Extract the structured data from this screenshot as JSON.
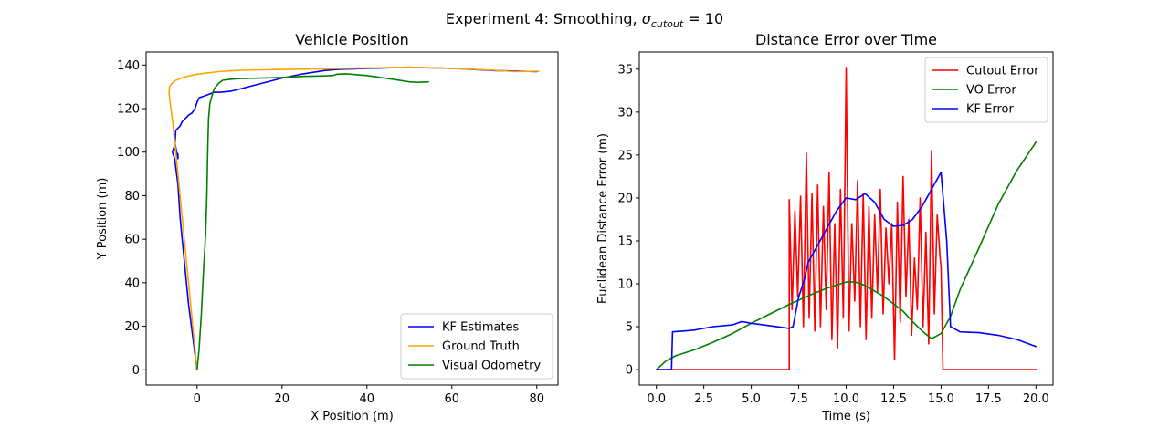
{
  "suptitle": {
    "prefix": "Experiment 4: Smoothing, ",
    "sigma": "σ",
    "subscript": "cutout",
    "suffix": " = 10"
  },
  "chart_data": [
    {
      "type": "line",
      "title": "Vehicle Position",
      "xlabel": "X Position (m)",
      "ylabel": "Y Position (m)",
      "xlim": [
        -12,
        85
      ],
      "ylim": [
        -7,
        146
      ],
      "xticks": [
        0,
        20,
        40,
        60,
        80
      ],
      "yticks": [
        0,
        20,
        40,
        60,
        80,
        100,
        120,
        140
      ],
      "grid": false,
      "legend_position": "lower-right",
      "series": [
        {
          "name": "KF Estimates",
          "color": "#0000ff",
          "x": [
            0,
            -1,
            -2,
            -3,
            -4,
            -4.5,
            -5.3,
            -5.8,
            -5.5,
            -4.5,
            -4.5,
            -5.2,
            -5,
            -4,
            -3.5,
            -3,
            -2,
            -1.2,
            -0.5,
            0,
            0.5,
            2,
            4,
            5.5,
            8,
            10,
            15,
            20,
            25,
            30,
            33,
            40,
            50,
            60,
            70,
            80
          ],
          "y": [
            0,
            15,
            30,
            50,
            70,
            85,
            97,
            100,
            102,
            99,
            97,
            104,
            110,
            112,
            114,
            115,
            117,
            118,
            120,
            123,
            125,
            126,
            127.5,
            127.5,
            128,
            129,
            131.5,
            134,
            136,
            137.5,
            138,
            138.5,
            139,
            138.5,
            137.5,
            137
          ],
          "lw": 1.6
        },
        {
          "name": "Ground Truth",
          "color": "#ffa500",
          "x": [
            0,
            -1,
            -2,
            -3,
            -4,
            -5,
            -5.8,
            -6.3,
            -6.6,
            -6.5,
            -6,
            -5,
            -3,
            0,
            5,
            10,
            20,
            30,
            40,
            50,
            60,
            70,
            75,
            80.5
          ],
          "y": [
            0,
            20,
            40,
            60,
            80,
            100,
            115,
            122,
            127,
            130,
            131.5,
            133,
            134.5,
            135.8,
            137,
            137.6,
            138,
            138.3,
            138.7,
            139,
            138.5,
            137.6,
            137,
            137.2
          ],
          "lw": 1.6
        },
        {
          "name": "Visual Odometry",
          "color": "#008000",
          "x": [
            0,
            0.5,
            1,
            1.5,
            2,
            2.3,
            2.5,
            2.7,
            3,
            3.5,
            4,
            5,
            6,
            8,
            10,
            15,
            20,
            25,
            30,
            32,
            33,
            35,
            40,
            45,
            50,
            52,
            54.5
          ],
          "y": [
            0,
            10,
            25,
            45,
            62,
            80,
            100,
            115,
            122,
            126,
            129,
            131.5,
            133,
            133.5,
            133.8,
            134,
            134.3,
            134.8,
            135,
            135.2,
            135.8,
            136,
            135.2,
            133.8,
            132.3,
            132.1,
            132.3
          ],
          "lw": 1.6
        }
      ]
    },
    {
      "type": "line",
      "title": "Distance Error over Time",
      "xlabel": "Time (s)",
      "ylabel": "Euclidean Distance Error (m)",
      "xlim": [
        -0.9,
        20.9
      ],
      "ylim": [
        -1.8,
        37
      ],
      "xticks": [
        0,
        2.5,
        5,
        7.5,
        10,
        12.5,
        15,
        17.5,
        20
      ],
      "xtick_labels": [
        "0.0",
        "2.5",
        "5.0",
        "7.5",
        "10.0",
        "12.5",
        "15.0",
        "17.5",
        "20.0"
      ],
      "yticks": [
        0,
        5,
        10,
        15,
        20,
        25,
        30,
        35
      ],
      "grid": false,
      "legend_position": "upper-right",
      "series": [
        {
          "name": "Cutout Error",
          "color": "#ff0000",
          "x": [
            0,
            7.0,
            7.0,
            7.15,
            7.3,
            7.45,
            7.6,
            7.75,
            7.9,
            8.05,
            8.2,
            8.35,
            8.5,
            8.65,
            8.8,
            8.95,
            9.1,
            9.25,
            9.4,
            9.55,
            9.7,
            9.85,
            10.0,
            10.15,
            10.3,
            10.45,
            10.6,
            10.75,
            10.9,
            11.05,
            11.2,
            11.35,
            11.5,
            11.65,
            11.8,
            11.95,
            12.1,
            12.25,
            12.4,
            12.55,
            12.7,
            12.85,
            13.0,
            13.15,
            13.3,
            13.45,
            13.6,
            13.75,
            13.9,
            14.05,
            14.2,
            14.35,
            14.5,
            14.65,
            14.8,
            14.95,
            15.0,
            15.1,
            20.0
          ],
          "y": [
            0,
            0,
            19.8,
            7,
            18.5,
            8.5,
            20.2,
            5,
            25.2,
            6,
            20.5,
            4.5,
            21.5,
            5,
            19,
            7,
            23,
            3.5,
            17,
            2.5,
            21,
            6,
            35.2,
            4.5,
            17,
            8,
            22,
            5,
            20.5,
            3.5,
            19,
            6,
            18,
            9,
            21,
            6.5,
            16.5,
            10,
            17,
            1.2,
            19.5,
            5.5,
            22.5,
            8.5,
            17.5,
            4,
            13,
            7,
            20,
            5,
            16,
            3,
            25.5,
            6.5,
            18,
            13,
            12,
            0,
            0
          ],
          "lw": 1.6
        },
        {
          "name": "VO Error",
          "color": "#008000",
          "x": [
            0,
            0.5,
            1,
            2,
            3,
            4,
            5,
            6,
            7,
            8,
            9,
            10,
            10.5,
            11,
            12,
            13,
            13.5,
            14,
            14.5,
            15,
            15.5,
            16,
            17,
            18,
            19,
            20
          ],
          "y": [
            0,
            1,
            1.6,
            2.3,
            3.2,
            4.2,
            5.4,
            6.5,
            7.6,
            8.6,
            9.5,
            10.2,
            10.2,
            9.8,
            8.5,
            6.8,
            5.6,
            4.5,
            3.6,
            4.2,
            6.2,
            9.3,
            14.2,
            19.2,
            23.2,
            26.5
          ],
          "lw": 1.6
        },
        {
          "name": "KF Error",
          "color": "#0000ff",
          "x": [
            0,
            0.8,
            0.85,
            1.5,
            2,
            3,
            4,
            4.5,
            5,
            6,
            7,
            7.2,
            7.5,
            7.8,
            8,
            8.5,
            9,
            9.5,
            10,
            10.5,
            11,
            11.5,
            12,
            12.5,
            13,
            13.5,
            14,
            14.5,
            15,
            15.3,
            15.5,
            16,
            17,
            18,
            19,
            20
          ],
          "y": [
            0,
            0,
            4.4,
            4.5,
            4.6,
            5.0,
            5.2,
            5.6,
            5.4,
            5.1,
            4.8,
            5.0,
            8.5,
            10.5,
            12.5,
            14.5,
            16.5,
            18.5,
            20.0,
            19.8,
            20.5,
            19.5,
            17.5,
            16.7,
            16.8,
            17.5,
            19.0,
            21.0,
            23.0,
            15.0,
            5.0,
            4.4,
            4.3,
            4.0,
            3.5,
            2.7
          ],
          "lw": 1.6
        }
      ]
    }
  ]
}
